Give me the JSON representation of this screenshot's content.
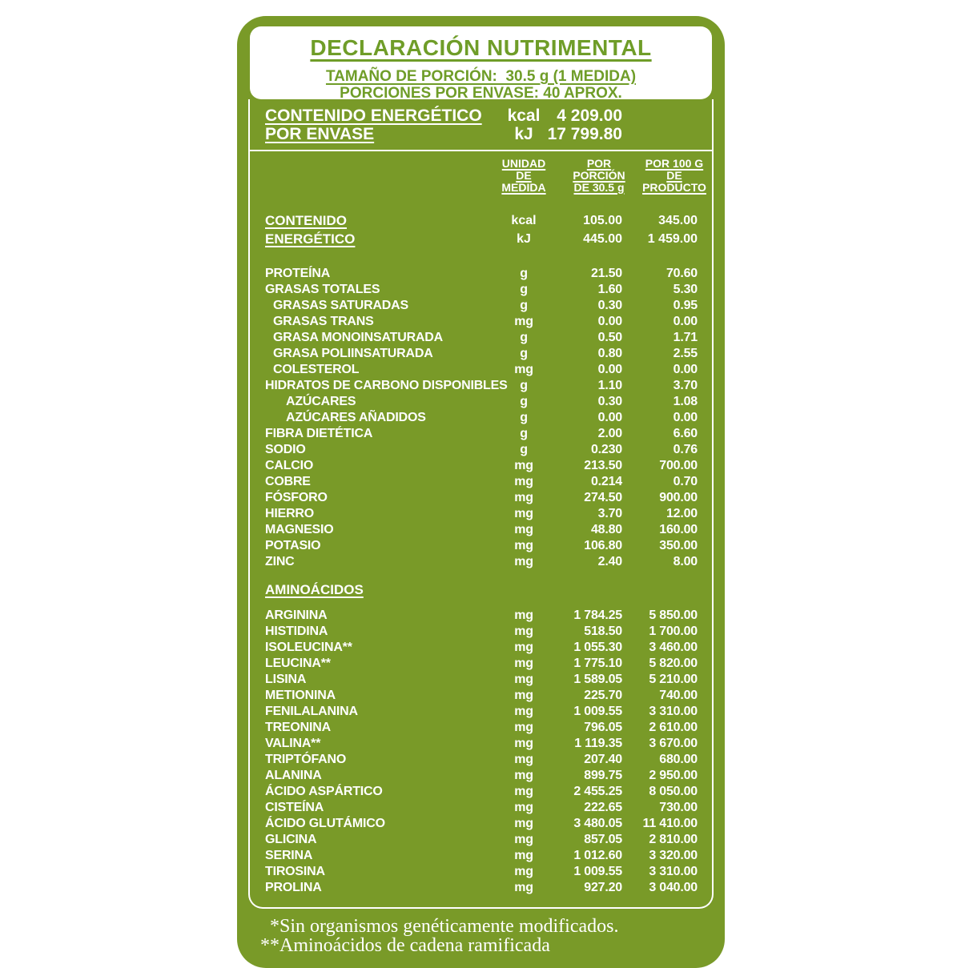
{
  "colors": {
    "label_green": "#799a28",
    "title_green": "#6f9d28",
    "text_white": "#ffffff"
  },
  "header": {
    "title": "DECLARACIÓN NUTRIMENTAL",
    "serving_size": "TAMAÑO DE PORCIÓN:  30.5 g (1 MEDIDA)",
    "servings_per_container": "PORCIONES POR ENVASE: 40 APROX."
  },
  "energy_per_container": {
    "label_lines": [
      "CONTENIDO ENERGÉTICO",
      "POR ENVASE"
    ],
    "rows": [
      {
        "unit": "kcal",
        "value": "4 209.00"
      },
      {
        "unit": "kJ",
        "value": "17 799.80"
      }
    ]
  },
  "columns": {
    "unit_lines": [
      "UNIDAD",
      "DE",
      "MEDIDA"
    ],
    "per_serving_lines": [
      "POR",
      "PORCIÓN",
      "DE 30.5 g"
    ],
    "per_100g_lines": [
      "POR 100 G",
      "DE",
      "PRODUCTO"
    ]
  },
  "energy_content": {
    "label_lines": [
      "CONTENIDO",
      "ENERGÉTICO"
    ],
    "rows": [
      {
        "unit": "kcal",
        "per_serving": "105.00",
        "per_100g": "345.00"
      },
      {
        "unit": "kJ",
        "per_serving": "445.00",
        "per_100g": "1 459.00"
      }
    ]
  },
  "nutrients": [
    {
      "name": "PROTEÍNA",
      "indent": 0,
      "unit": "g",
      "per_serving": "21.50",
      "per_100g": "70.60"
    },
    {
      "name": "GRASAS TOTALES",
      "indent": 0,
      "unit": "g",
      "per_serving": "1.60",
      "per_100g": "5.30"
    },
    {
      "name": "GRASAS SATURADAS",
      "indent": 1,
      "unit": "g",
      "per_serving": "0.30",
      "per_100g": "0.95"
    },
    {
      "name": "GRASAS TRANS",
      "indent": 1,
      "unit": "mg",
      "per_serving": "0.00",
      "per_100g": "0.00"
    },
    {
      "name": "GRASA MONOINSATURADA",
      "indent": 1,
      "unit": "g",
      "per_serving": "0.50",
      "per_100g": "1.71"
    },
    {
      "name": "GRASA POLIINSATURADA",
      "indent": 1,
      "unit": "g",
      "per_serving": "0.80",
      "per_100g": "2.55"
    },
    {
      "name": "COLESTEROL",
      "indent": 1,
      "unit": "mg",
      "per_serving": "0.00",
      "per_100g": "0.00"
    },
    {
      "name": "HIDRATOS DE CARBONO DISPONIBLES",
      "indent": 0,
      "unit": "g",
      "per_serving": "1.10",
      "per_100g": "3.70"
    },
    {
      "name": "AZÚCARES",
      "indent": 2,
      "unit": "g",
      "per_serving": "0.30",
      "per_100g": "1.08"
    },
    {
      "name": "AZÚCARES AÑADIDOS",
      "indent": 2,
      "unit": "g",
      "per_serving": "0.00",
      "per_100g": "0.00"
    },
    {
      "name": "FIBRA DIETÉTICA",
      "indent": 0,
      "unit": "g",
      "per_serving": "2.00",
      "per_100g": "6.60"
    },
    {
      "name": "SODIO",
      "indent": 0,
      "unit": "g",
      "per_serving": "0.230",
      "per_100g": "0.76"
    },
    {
      "name": "CALCIO",
      "indent": 0,
      "unit": "mg",
      "per_serving": "213.50",
      "per_100g": "700.00"
    },
    {
      "name": "COBRE",
      "indent": 0,
      "unit": "mg",
      "per_serving": "0.214",
      "per_100g": "0.70"
    },
    {
      "name": "FÓSFORO",
      "indent": 0,
      "unit": "mg",
      "per_serving": "274.50",
      "per_100g": "900.00"
    },
    {
      "name": "HIERRO",
      "indent": 0,
      "unit": "mg",
      "per_serving": "3.70",
      "per_100g": "12.00"
    },
    {
      "name": "MAGNESIO",
      "indent": 0,
      "unit": "mg",
      "per_serving": "48.80",
      "per_100g": "160.00"
    },
    {
      "name": "POTASIO",
      "indent": 0,
      "unit": "mg",
      "per_serving": "106.80",
      "per_100g": "350.00"
    },
    {
      "name": "ZINC",
      "indent": 0,
      "unit": "mg",
      "per_serving": "2.40",
      "per_100g": "8.00"
    }
  ],
  "amino_section_title": "AMINOÁCIDOS",
  "amino_acids": [
    {
      "name": "ARGININA",
      "indent": 0,
      "unit": "mg",
      "per_serving": "1 784.25",
      "per_100g": "5 850.00"
    },
    {
      "name": "HISTIDINA",
      "indent": 0,
      "unit": "mg",
      "per_serving": "518.50",
      "per_100g": "1 700.00"
    },
    {
      "name": "ISOLEUCINA**",
      "indent": 0,
      "unit": "mg",
      "per_serving": "1 055.30",
      "per_100g": "3 460.00"
    },
    {
      "name": "LEUCINA**",
      "indent": 0,
      "unit": "mg",
      "per_serving": "1 775.10",
      "per_100g": "5 820.00"
    },
    {
      "name": "LISINA",
      "indent": 0,
      "unit": "mg",
      "per_serving": "1 589.05",
      "per_100g": "5 210.00"
    },
    {
      "name": "METIONINA",
      "indent": 0,
      "unit": "mg",
      "per_serving": "225.70",
      "per_100g": "740.00"
    },
    {
      "name": "FENILALANINA",
      "indent": 0,
      "unit": "mg",
      "per_serving": "1 009.55",
      "per_100g": "3 310.00"
    },
    {
      "name": "TREONINA",
      "indent": 0,
      "unit": "mg",
      "per_serving": "796.05",
      "per_100g": "2 610.00"
    },
    {
      "name": "VALINA**",
      "indent": 0,
      "unit": "mg",
      "per_serving": "1 119.35",
      "per_100g": "3 670.00"
    },
    {
      "name": "TRIPTÓFANO",
      "indent": 0,
      "unit": "mg",
      "per_serving": "207.40",
      "per_100g": "680.00"
    },
    {
      "name": "ALANINA",
      "indent": 0,
      "unit": "mg",
      "per_serving": "899.75",
      "per_100g": "2 950.00"
    },
    {
      "name": "ÁCIDO ASPÁRTICO",
      "indent": 0,
      "unit": "mg",
      "per_serving": "2 455.25",
      "per_100g": "8 050.00"
    },
    {
      "name": "CISTEÍNA",
      "indent": 0,
      "unit": "mg",
      "per_serving": "222.65",
      "per_100g": "730.00"
    },
    {
      "name": "ÁCIDO GLUTÁMICO",
      "indent": 0,
      "unit": "mg",
      "per_serving": "3 480.05",
      "per_100g": "11 410.00"
    },
    {
      "name": "GLICINA",
      "indent": 0,
      "unit": "mg",
      "per_serving": "857.05",
      "per_100g": "2 810.00"
    },
    {
      "name": "SERINA",
      "indent": 0,
      "unit": "mg",
      "per_serving": "1 012.60",
      "per_100g": "3 320.00"
    },
    {
      "name": "TIROSINA",
      "indent": 0,
      "unit": "mg",
      "per_serving": "1 009.55",
      "per_100g": "3 310.00"
    },
    {
      "name": "PROLINA",
      "indent": 0,
      "unit": "mg",
      "per_serving": "927.20",
      "per_100g": "3 040.00"
    }
  ],
  "footnotes": [
    {
      "marker": "*",
      "text": "Sin organismos genéticamente modificados."
    },
    {
      "marker": "**",
      "text": "Aminoácidos de cadena ramificada"
    }
  ]
}
